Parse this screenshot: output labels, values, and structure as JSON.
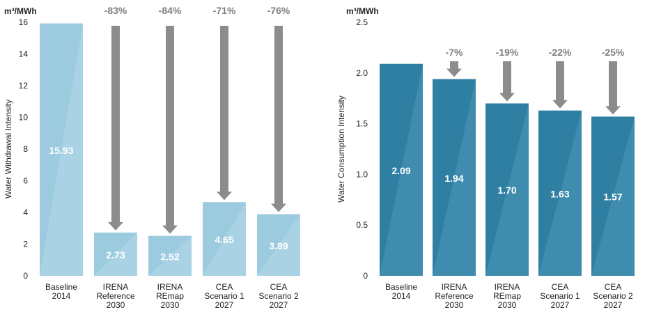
{
  "colors": {
    "left_bar": "#9ccbe0",
    "left_bar_shade": "#b6d9e9",
    "right_bar": "#2f7fa3",
    "right_bar_shade": "#4d97b8",
    "arrow": "#8c8c8c",
    "axis_text": "#222222",
    "arrow_label": "#7f7f7f",
    "value_label": "#ffffff"
  },
  "chart_data": [
    {
      "type": "bar",
      "unit": "m³/MWh",
      "ylabel": "Water Withdrawal Intensity",
      "ylim": [
        0,
        16
      ],
      "yticks": [
        "0",
        "2",
        "4",
        "6",
        "8",
        "10",
        "12",
        "14",
        "16"
      ],
      "categories": [
        [
          "Baseline",
          "2014"
        ],
        [
          "IRENA",
          "Reference",
          "2030"
        ],
        [
          "IRENA",
          "REmap",
          "2030"
        ],
        [
          "CEA",
          "Scenario 1",
          "2027"
        ],
        [
          "CEA",
          "Scenario 2",
          "2027"
        ]
      ],
      "values": [
        15.93,
        2.73,
        2.52,
        4.65,
        3.89
      ],
      "value_labels": [
        "15.93",
        "2.73",
        "2.52",
        "4.65",
        "3.89"
      ],
      "reductions": [
        "",
        "-83%",
        "-84%",
        "-71%",
        "-76%"
      ]
    },
    {
      "type": "bar",
      "unit": "m³/MWh",
      "ylabel": "Water Consumption Intensity",
      "ylim": [
        0,
        2.5
      ],
      "yticks": [
        "0",
        "0.5",
        "1.0",
        "1.5",
        "2.0",
        "2.5"
      ],
      "categories": [
        [
          "Baseline",
          "2014"
        ],
        [
          "IRENA",
          "Reference",
          "2030"
        ],
        [
          "IRENA",
          "REmap",
          "2030"
        ],
        [
          "CEA",
          "Scenario 1",
          "2027"
        ],
        [
          "CEA",
          "Scenario 2",
          "2027"
        ]
      ],
      "values": [
        2.09,
        1.94,
        1.7,
        1.63,
        1.57
      ],
      "value_labels": [
        "2.09",
        "1.94",
        "1.70",
        "1.63",
        "1.57"
      ],
      "reductions": [
        "",
        "-7%",
        "-19%",
        "-22%",
        "-25%"
      ]
    }
  ]
}
